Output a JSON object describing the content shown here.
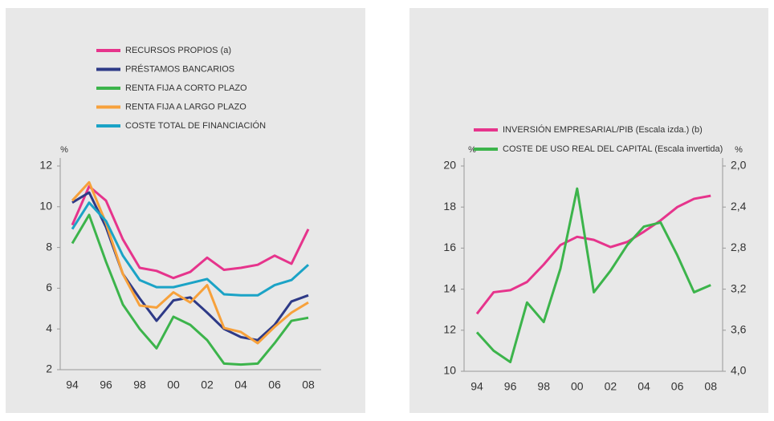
{
  "chart_data": [
    {
      "type": "line",
      "x": [
        "94",
        null,
        "96",
        null,
        "98",
        null,
        "00",
        null,
        "02",
        null,
        "04",
        null,
        "06",
        null,
        "08"
      ],
      "y_unit": "%",
      "ylim": [
        2,
        12
      ],
      "yticks": [
        2,
        4,
        6,
        8,
        10,
        12
      ],
      "series": [
        {
          "name": "RECURSOS PROPIOS (a)",
          "color": "#e6348c",
          "values": [
            9.1,
            11.0,
            10.3,
            8.4,
            7.0,
            6.85,
            6.5,
            6.8,
            7.5,
            6.9,
            7.0,
            7.15,
            7.6,
            7.2,
            8.9
          ]
        },
        {
          "name": "PRÉSTAMOS BANCARIOS",
          "color": "#2e3a87",
          "values": [
            10.2,
            10.7,
            9.0,
            6.7,
            5.5,
            4.4,
            5.4,
            5.55,
            4.8,
            4.0,
            3.6,
            3.45,
            4.2,
            5.35,
            5.65
          ]
        },
        {
          "name": "RENTA FIJA A CORTO PLAZO",
          "color": "#3cb44b",
          "values": [
            8.2,
            9.6,
            7.3,
            5.2,
            4.0,
            3.05,
            4.6,
            4.2,
            3.45,
            2.3,
            2.25,
            2.3,
            3.3,
            4.4,
            4.55
          ]
        },
        {
          "name": "RENTA FIJA A LARGO PLAZO",
          "color": "#f7a13b",
          "values": [
            10.3,
            11.2,
            9.2,
            6.7,
            5.15,
            5.05,
            5.8,
            5.3,
            6.15,
            4.05,
            3.85,
            3.3,
            4.1,
            4.8,
            5.3
          ]
        },
        {
          "name": "COSTE TOTAL DE FINANCIACIÓN",
          "color": "#1ba3c6",
          "values": [
            8.9,
            10.2,
            9.3,
            7.6,
            6.4,
            6.05,
            6.05,
            6.25,
            6.45,
            5.7,
            5.65,
            5.65,
            6.15,
            6.4,
            7.15
          ]
        }
      ]
    },
    {
      "type": "line",
      "x": [
        "94",
        null,
        "96",
        null,
        "98",
        null,
        "00",
        null,
        "02",
        null,
        "04",
        null,
        "06",
        null,
        "08"
      ],
      "y_unit": "%",
      "y2_unit": "%",
      "ylim": [
        10,
        20
      ],
      "yticks": [
        10,
        12,
        14,
        16,
        18,
        20
      ],
      "y2lim": [
        4.0,
        2.0
      ],
      "y2ticks": [
        {
          "value": 2.0,
          "label": "2,0"
        },
        {
          "value": 2.4,
          "label": "2,4"
        },
        {
          "value": 2.8,
          "label": "2,8"
        },
        {
          "value": 3.2,
          "label": "3,2"
        },
        {
          "value": 3.6,
          "label": "3,6"
        },
        {
          "value": 4.0,
          "label": "4,0"
        }
      ],
      "series": [
        {
          "name": "INVERSIÓN EMPRESARIAL/PIB (Escala izda.) (b)",
          "color": "#e6348c",
          "values": [
            12.8,
            13.85,
            13.95,
            14.35,
            15.2,
            16.15,
            16.55,
            16.4,
            16.05,
            16.3,
            16.8,
            17.35,
            18.0,
            18.4,
            18.55
          ]
        },
        {
          "name": "COSTE DE USO REAL DEL CAPITAL (Escala invertida)",
          "color": "#3cb44b",
          "axis": "y2",
          "values": [
            3.62,
            3.8,
            3.91,
            3.33,
            3.52,
            3.0,
            2.22,
            3.23,
            3.02,
            2.77,
            2.59,
            2.55,
            2.87,
            3.23,
            3.16
          ]
        }
      ]
    }
  ]
}
